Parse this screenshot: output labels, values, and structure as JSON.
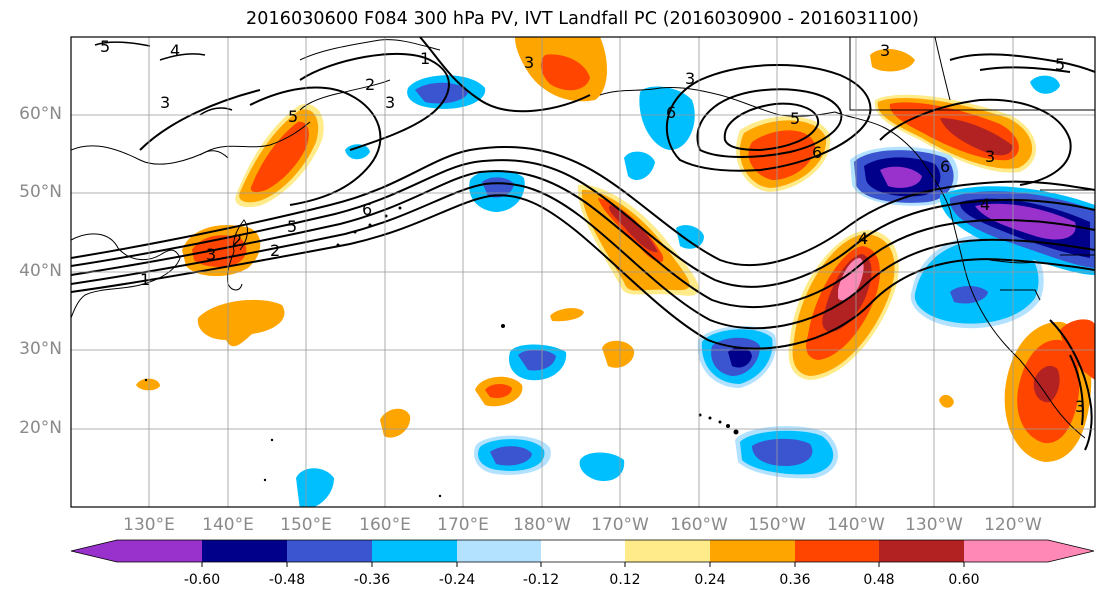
{
  "title": "2016030600 F084 300 hPa PV, IVT Landfall PC (2016030900 - 2016031100)",
  "latitude_labels": [
    "60°N",
    "50°N",
    "40°N",
    "30°N",
    "20°N"
  ],
  "longitude_labels": [
    "130°E",
    "140°E",
    "150°E",
    "160°E",
    "170°E",
    "180°W",
    "170°W",
    "160°W",
    "150°W",
    "140°W",
    "130°W",
    "120°W"
  ],
  "contour_labels": [
    "5",
    "4",
    "3",
    "2",
    "1",
    "6",
    "5",
    "3",
    "2",
    "3",
    "3",
    "5",
    "6",
    "6",
    "3",
    "4",
    "6",
    "3",
    "4",
    "3",
    "2",
    "1",
    "5",
    "3",
    "5"
  ],
  "colorbar": {
    "colors": [
      "#9932cc",
      "#00008b",
      "#3a55cf",
      "#00bfff",
      "#b2e2ff",
      "#ffffff",
      "#ffeb8a",
      "#ffa500",
      "#ff4500",
      "#b22222",
      "#ff88b6"
    ],
    "tick_labels": [
      "-0.60",
      "-0.48",
      "-0.36",
      "-0.24",
      "-0.12",
      "0.12",
      "0.24",
      "0.36",
      "0.48",
      "0.60"
    ]
  }
}
